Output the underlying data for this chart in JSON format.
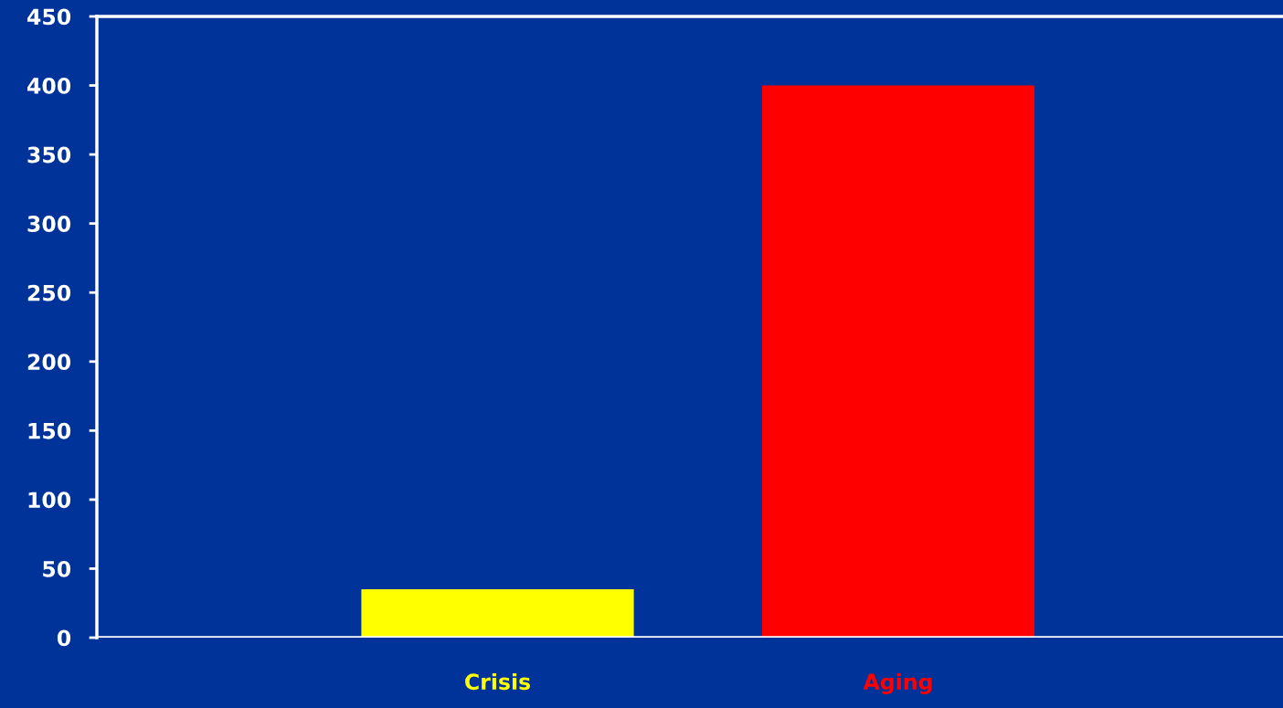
{
  "chart_data": {
    "type": "bar",
    "categories": [
      "Crisis",
      "Aging"
    ],
    "values": [
      35,
      400
    ],
    "colors": [
      "#ffff00",
      "#ff0000"
    ],
    "ylim": [
      0,
      450
    ],
    "yticks": [
      0,
      50,
      100,
      150,
      200,
      250,
      300,
      350,
      400,
      450
    ],
    "grid": false,
    "legend": false
  }
}
